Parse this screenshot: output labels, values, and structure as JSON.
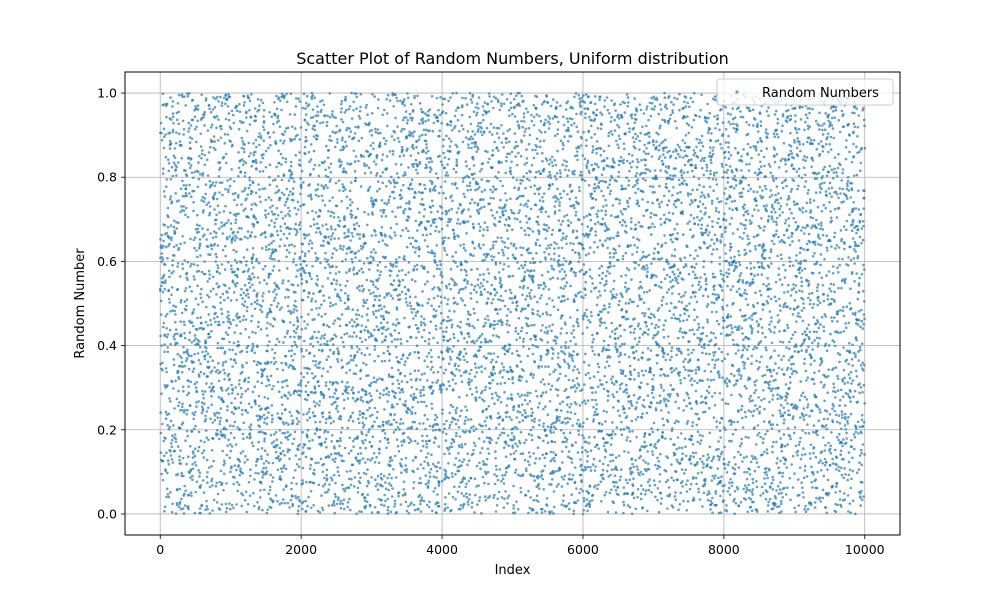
{
  "chart_data": {
    "type": "scatter",
    "title": "Scatter Plot of Random Numbers, Uniform distribution",
    "xlabel": "Index",
    "ylabel": "Random Number",
    "xlim": [
      -500,
      10500
    ],
    "ylim": [
      -0.05,
      1.05
    ],
    "x_ticks": [
      0,
      2000,
      4000,
      6000,
      8000,
      10000
    ],
    "y_ticks": [
      0.0,
      0.2,
      0.4,
      0.6,
      0.8,
      1.0
    ],
    "x_tick_labels": [
      "0",
      "2000",
      "4000",
      "6000",
      "8000",
      "10000"
    ],
    "y_tick_labels": [
      "0.0",
      "0.2",
      "0.4",
      "0.6",
      "0.8",
      "1.0"
    ],
    "grid": true,
    "legend_position": "top-right",
    "series": [
      {
        "name": "Random Numbers",
        "color": "#1f77b4",
        "alpha": 0.7,
        "distribution": "uniform",
        "x_range": [
          0,
          10000
        ],
        "y_range": [
          0,
          1
        ],
        "n_points": 10000
      }
    ]
  }
}
